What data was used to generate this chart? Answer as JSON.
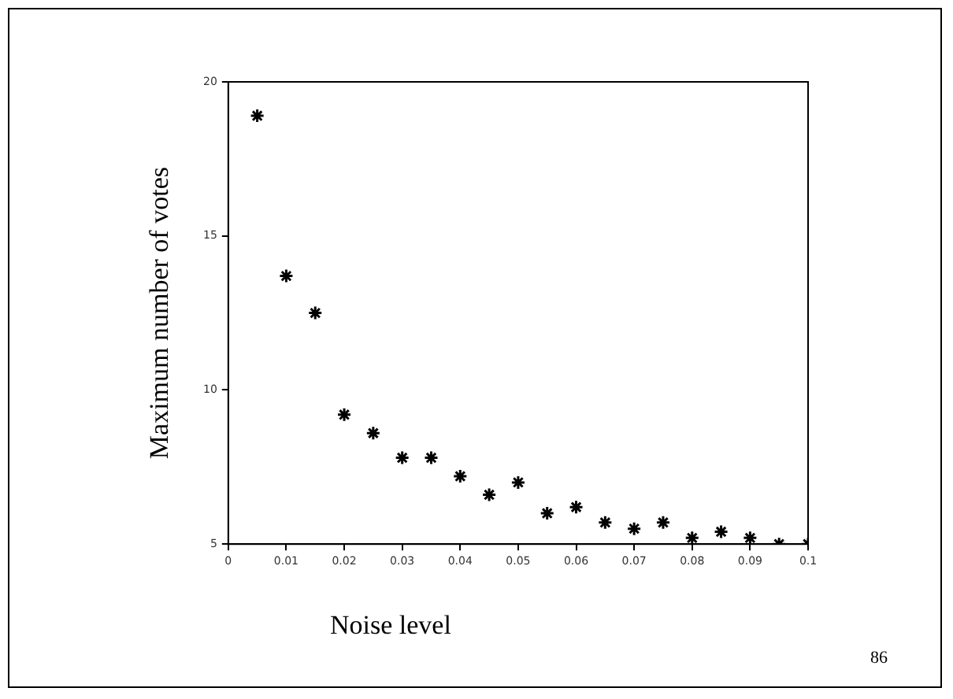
{
  "chart_data": {
    "type": "scatter",
    "xlabel": "Noise level",
    "ylabel": "Maximum number of votes",
    "x": [
      0.005,
      0.01,
      0.015,
      0.02,
      0.025,
      0.03,
      0.035,
      0.04,
      0.045,
      0.05,
      0.055,
      0.06,
      0.065,
      0.07,
      0.075,
      0.08,
      0.085,
      0.09,
      0.095,
      0.1
    ],
    "series": [
      {
        "color": "#000000",
        "values": [
          18.9,
          13.7,
          12.5,
          9.2,
          8.6,
          7.8,
          7.8,
          7.2,
          6.6,
          7.0,
          6.0,
          6.2,
          5.7,
          5.5,
          5.7,
          5.2,
          5.4,
          5.2,
          5.0,
          5.0
        ]
      }
    ],
    "xlim": [
      0,
      0.1
    ],
    "xticks": [
      0,
      0.01,
      0.02,
      0.03,
      0.04,
      0.05,
      0.06,
      0.07,
      0.08,
      0.09,
      0.1
    ],
    "ylim": [
      5,
      20
    ],
    "yticks": [
      5,
      10,
      15,
      20
    ],
    "marker": "cross",
    "grid": false,
    "legend": false,
    "annotations": [
      "86"
    ]
  }
}
